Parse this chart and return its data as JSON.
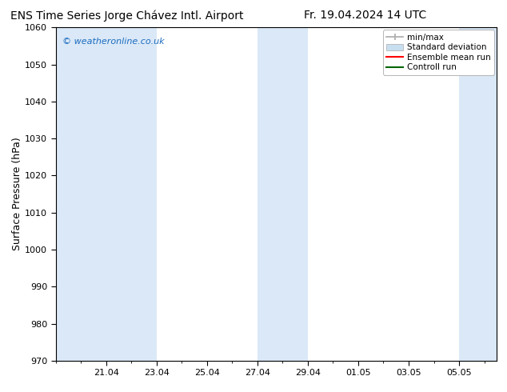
{
  "title_left": "ENS Time Series Jorge Chávez Intl. Airport",
  "title_right": "Fr. 19.04.2024 14 UTC",
  "ylabel": "Surface Pressure (hPa)",
  "ylim": [
    970,
    1060
  ],
  "yticks": [
    970,
    980,
    990,
    1000,
    1010,
    1020,
    1030,
    1040,
    1050,
    1060
  ],
  "xtick_labels": [
    "21.04",
    "23.04",
    "25.04",
    "27.04",
    "29.04",
    "01.05",
    "03.05",
    "05.05"
  ],
  "xtick_positions": [
    2,
    4,
    6,
    8,
    10,
    12,
    14,
    16
  ],
  "xlim": [
    0,
    17.5
  ],
  "background_color": "#ffffff",
  "plot_bg_color": "#ffffff",
  "shaded_band_color": "#dae8f7",
  "shaded_ranges": [
    [
      0,
      2
    ],
    [
      2,
      4
    ],
    [
      8,
      10
    ],
    [
      16,
      17.5
    ]
  ],
  "watermark_text": "© weatheronline.co.uk",
  "watermark_color": "#1a6bbf",
  "legend_entries": [
    "min/max",
    "Standard deviation",
    "Ensemble mean run",
    "Controll run"
  ],
  "legend_minmax_color": "#aaaaaa",
  "legend_std_color": "#c8dff0",
  "legend_ensemble_color": "#ff0000",
  "legend_control_color": "#006400",
  "title_fontsize": 10,
  "axis_label_fontsize": 9,
  "tick_fontsize": 8,
  "legend_fontsize": 7.5,
  "watermark_fontsize": 8
}
